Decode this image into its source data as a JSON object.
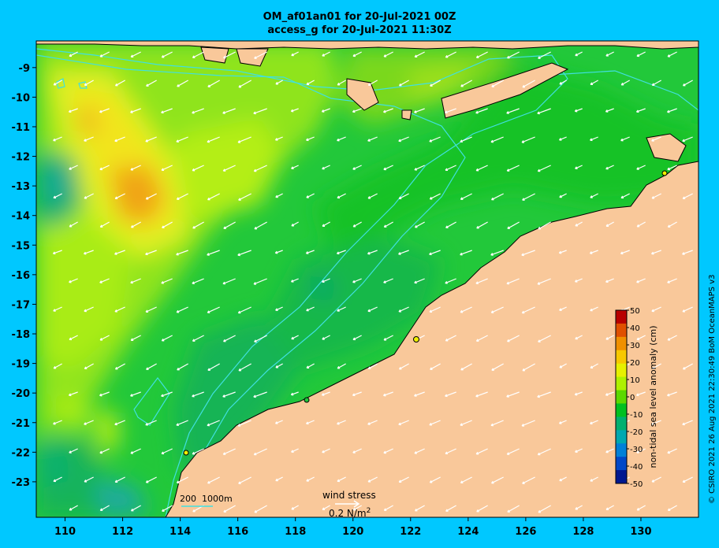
{
  "title_line1": "OM_af01an01 for 20-Jul-2021 00Z",
  "title_line2": "access_g for 20-Jul-2021 11:30Z",
  "credit": "© CSIRO 2021  26 Aug 2021 22:30:49 BoM OceanMAPS v3",
  "scale_bar": {
    "depth_labels": [
      "200",
      "1000m"
    ]
  },
  "wind_legend": {
    "label": "wind stress",
    "value": "0.2 N/m",
    "unit_exp": "2"
  },
  "colorbar": {
    "label": "non-tidal sea level anomaly (cm)",
    "ticks": [
      "50",
      "40",
      "30",
      "20",
      "10",
      "0",
      "-10",
      "-20",
      "-30",
      "-40",
      "-50"
    ],
    "colors": [
      "#b80000",
      "#e05000",
      "#f09000",
      "#f7c800",
      "#e6f000",
      "#aef000",
      "#5cd800",
      "#00c020",
      "#00b070",
      "#00a8b0",
      "#0080d8",
      "#0048c8",
      "#001890"
    ]
  },
  "axes": {
    "x_ticks": [
      110,
      112,
      114,
      116,
      118,
      120,
      122,
      124,
      126,
      128,
      130
    ],
    "y_ticks": [
      -9,
      -10,
      -11,
      -12,
      -13,
      -14,
      -15,
      -16,
      -17,
      -18,
      -19,
      -20,
      -21,
      -22,
      -23
    ],
    "lon_range": [
      109.0,
      132.0
    ],
    "lat_range": [
      -8.1,
      -24.2
    ]
  },
  "colors": {
    "background": "#00c8ff",
    "land": "#f9c89a",
    "ocean": "#22c83a",
    "contour": "#40e0e0"
  }
}
